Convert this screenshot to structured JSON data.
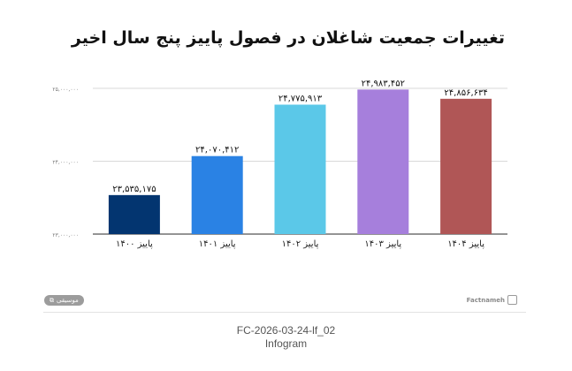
{
  "chart_data": {
    "type": "bar",
    "title": "تغییرات جمعیت شاغلان در فصول پاییز پنج سال اخیر",
    "categories": [
      "پاییز ۱۴۰۰",
      "پاییز ۱۴۰۱",
      "پاییز ۱۴۰۲",
      "پاییز ۱۴۰۳",
      "پاییز ۱۴۰۴"
    ],
    "values": [
      23535175,
      24070412,
      24775913,
      24983452,
      24856634
    ],
    "value_labels": [
      "۲۳,۵۳۵,۱۷۵",
      "۲۴,۰۷۰,۴۱۲",
      "۲۴,۷۷۵,۹۱۳",
      "۲۴,۹۸۳,۴۵۲",
      "۲۴,۸۵۶,۶۳۴"
    ],
    "colors": [
      "#033570",
      "#2a82e4",
      "#5bc8e8",
      "#a67fdc",
      "#b05656"
    ],
    "ylim": [
      23000000,
      25000000
    ],
    "yticks": [
      23000000,
      24000000,
      25000000
    ],
    "ytick_labels": [
      "۲۳,۰۰۰,۰۰۰",
      "۲۴,۰۰۰,۰۰۰",
      "۲۵,۰۰۰,۰۰۰"
    ],
    "xlabel": "",
    "ylabel": "",
    "grid": true,
    "legend": "none"
  },
  "footer": {
    "badge": "موسیقی",
    "brand": "Factnameh"
  },
  "caption": {
    "line1": "FC-2026-03-24-lf_02",
    "line2": "Infogram"
  }
}
